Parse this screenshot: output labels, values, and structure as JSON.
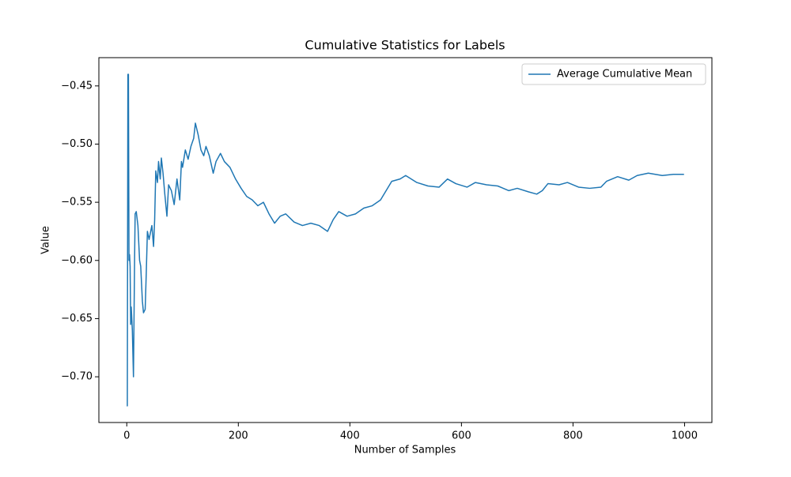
{
  "chart_data": {
    "type": "line",
    "title": "Cumulative Statistics for Labels",
    "x_label": "Number of Samples",
    "y_label": "Value",
    "x": [
      0,
      1,
      2,
      3,
      4,
      5,
      6,
      7,
      8,
      10,
      12,
      14,
      15,
      17,
      20,
      23,
      25,
      28,
      30,
      33,
      35,
      37,
      40,
      45,
      48,
      50,
      52,
      55,
      57,
      60,
      62,
      65,
      68,
      72,
      75,
      80,
      85,
      90,
      95,
      98,
      100,
      105,
      110,
      115,
      120,
      123,
      128,
      133,
      138,
      142,
      148,
      155,
      160,
      168,
      175,
      185,
      195,
      205,
      215,
      225,
      235,
      245,
      255,
      265,
      275,
      285,
      300,
      315,
      330,
      345,
      360,
      370,
      380,
      395,
      410,
      425,
      440,
      455,
      465,
      475,
      490,
      500,
      520,
      540,
      560,
      575,
      590,
      610,
      625,
      645,
      665,
      685,
      700,
      720,
      735,
      745,
      755,
      775,
      790,
      810,
      830,
      850,
      860,
      880,
      900,
      915,
      935,
      960,
      980,
      999
    ],
    "series": [
      {
        "name": "Average Cumulative Mean",
        "color": "#1f77b4",
        "values": [
          -0.725,
          -0.725,
          -0.44,
          -0.44,
          -0.6,
          -0.595,
          -0.605,
          -0.655,
          -0.64,
          -0.66,
          -0.7,
          -0.6,
          -0.56,
          -0.558,
          -0.57,
          -0.6,
          -0.605,
          -0.635,
          -0.645,
          -0.642,
          -0.61,
          -0.575,
          -0.582,
          -0.57,
          -0.588,
          -0.565,
          -0.523,
          -0.533,
          -0.515,
          -0.53,
          -0.512,
          -0.525,
          -0.542,
          -0.562,
          -0.535,
          -0.54,
          -0.552,
          -0.53,
          -0.548,
          -0.515,
          -0.52,
          -0.505,
          -0.513,
          -0.502,
          -0.495,
          -0.482,
          -0.492,
          -0.505,
          -0.51,
          -0.502,
          -0.51,
          -0.525,
          -0.515,
          -0.508,
          -0.515,
          -0.52,
          -0.53,
          -0.538,
          -0.545,
          -0.548,
          -0.553,
          -0.55,
          -0.56,
          -0.568,
          -0.562,
          -0.56,
          -0.567,
          -0.57,
          -0.568,
          -0.57,
          -0.575,
          -0.565,
          -0.558,
          -0.562,
          -0.56,
          -0.555,
          -0.553,
          -0.548,
          -0.54,
          -0.532,
          -0.53,
          -0.527,
          -0.533,
          -0.536,
          -0.537,
          -0.53,
          -0.534,
          -0.537,
          -0.533,
          -0.535,
          -0.536,
          -0.54,
          -0.538,
          -0.541,
          -0.543,
          -0.54,
          -0.534,
          -0.535,
          -0.533,
          -0.537,
          -0.538,
          -0.537,
          -0.532,
          -0.528,
          -0.531,
          -0.527,
          -0.525,
          -0.527,
          -0.526,
          -0.526
        ]
      }
    ],
    "xlim": [
      -50,
      1049
    ],
    "xticks": [
      0,
      200,
      400,
      600,
      800,
      1000
    ],
    "ylim": [
      -0.7393,
      -0.4257
    ],
    "yticks": [
      {
        "value": -0.7,
        "label": "−0.70"
      },
      {
        "value": -0.65,
        "label": "−0.65"
      },
      {
        "value": -0.6,
        "label": "−0.60"
      },
      {
        "value": -0.55,
        "label": "−0.55"
      },
      {
        "value": -0.5,
        "label": "−0.50"
      },
      {
        "value": -0.45,
        "label": "−0.45"
      }
    ],
    "legend": "upper right"
  }
}
